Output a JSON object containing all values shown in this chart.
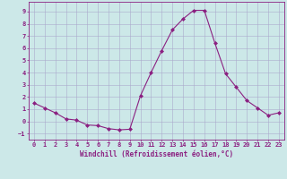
{
  "x": [
    0,
    1,
    2,
    3,
    4,
    5,
    6,
    7,
    8,
    9,
    10,
    11,
    12,
    13,
    14,
    15,
    16,
    17,
    18,
    19,
    20,
    21,
    22,
    23
  ],
  "y": [
    1.5,
    1.1,
    0.7,
    0.2,
    0.1,
    -0.3,
    -0.35,
    -0.6,
    -0.7,
    -0.65,
    2.1,
    4.0,
    5.8,
    7.5,
    8.4,
    9.1,
    9.1,
    6.4,
    3.9,
    2.8,
    1.7,
    1.1,
    0.5,
    0.7
  ],
  "line_color": "#8b2081",
  "marker": "D",
  "marker_size": 2,
  "bg_color": "#cce8e8",
  "grid_color": "#aaaacc",
  "axis_color": "#8b2081",
  "xlabel": "Windchill (Refroidissement éolien,°C)",
  "xlabel_fontsize": 5.5,
  "tick_fontsize": 5,
  "xlim": [
    -0.5,
    23.5
  ],
  "ylim": [
    -1.5,
    9.8
  ],
  "yticks": [
    -1,
    0,
    1,
    2,
    3,
    4,
    5,
    6,
    7,
    8,
    9
  ],
  "xticks": [
    0,
    1,
    2,
    3,
    4,
    5,
    6,
    7,
    8,
    9,
    10,
    11,
    12,
    13,
    14,
    15,
    16,
    17,
    18,
    19,
    20,
    21,
    22,
    23
  ]
}
